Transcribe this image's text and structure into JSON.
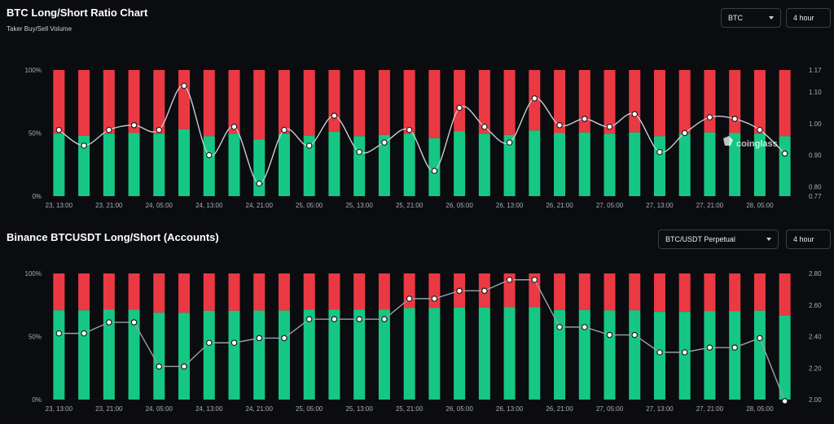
{
  "chart_data": [
    {
      "type": "bar",
      "title": "BTC Long/Short Ratio Chart",
      "subtitle": "Taker Buy/Sell Volume",
      "asset_select": "BTC",
      "interval_select": "4 hour",
      "watermark": "coinglass",
      "x_labels": [
        "23, 13:00",
        "23, 21:00",
        "24, 05:00",
        "24, 13:00",
        "24, 21:00",
        "25, 05:00",
        "25, 13:00",
        "25, 21:00",
        "26, 05:00",
        "26, 13:00",
        "26, 21:00",
        "27, 05:00",
        "27, 13:00",
        "27, 21:00",
        "28, 05:00"
      ],
      "y_left_ticks": [
        "100%",
        "50%",
        "0%"
      ],
      "y_right_ticks": [
        "1.17",
        "1.10",
        "1.00",
        "0.90",
        "0.80",
        "0.77"
      ],
      "y_right_values": [
        1.17,
        1.1,
        1.0,
        0.9,
        0.8,
        0.77
      ],
      "y_right_range": [
        0.77,
        1.17
      ],
      "long_pct": [
        49.5,
        48.0,
        49.5,
        50.0,
        49.5,
        53.0,
        47.5,
        49.5,
        45.0,
        49.5,
        48.0,
        51.0,
        47.5,
        48.5,
        49.5,
        46.0,
        51.5,
        49.5,
        48.5,
        52.0,
        50.0,
        50.5,
        49.5,
        50.5,
        47.5,
        49.5,
        50.5,
        50.0,
        49.5,
        47.5
      ],
      "ratio": [
        0.98,
        0.93,
        0.98,
        0.995,
        0.98,
        1.12,
        0.9,
        0.99,
        0.81,
        0.98,
        0.93,
        1.025,
        0.91,
        0.94,
        0.98,
        0.85,
        1.05,
        0.99,
        0.94,
        1.08,
        0.995,
        1.015,
        0.99,
        1.03,
        0.91,
        0.97,
        1.02,
        1.015,
        0.98,
        0.905
      ],
      "colors": {
        "long": "#16c784",
        "short": "#ea3943",
        "line": "#c9ccd1"
      }
    },
    {
      "type": "bar",
      "title": "Binance BTCUSDT Long/Short (Accounts)",
      "pair_select": "BTC/USDT Perpetual",
      "interval_select": "4 hour",
      "x_labels": [
        "23, 13:00",
        "23, 21:00",
        "24, 05:00",
        "24, 13:00",
        "24, 21:00",
        "25, 05:00",
        "25, 13:00",
        "25, 21:00",
        "26, 05:00",
        "26, 13:00",
        "26, 21:00",
        "27, 05:00",
        "27, 13:00",
        "27, 21:00",
        "28, 05:00"
      ],
      "y_left_ticks": [
        "100%",
        "50%",
        "0%"
      ],
      "y_right_ticks": [
        "2.80",
        "2.60",
        "2.40",
        "2.20",
        "2.00"
      ],
      "y_right_values": [
        2.8,
        2.6,
        2.4,
        2.2,
        2.0
      ],
      "y_right_range": [
        2.0,
        2.8
      ],
      "long_pct": [
        70.8,
        70.8,
        71.3,
        71.3,
        68.9,
        68.9,
        70.4,
        70.4,
        70.6,
        70.6,
        71.5,
        71.5,
        71.5,
        71.5,
        72.6,
        72.6,
        73.0,
        73.0,
        73.4,
        73.4,
        71.1,
        71.1,
        70.7,
        70.7,
        69.6,
        69.6,
        70.0,
        70.0,
        70.5,
        66.7
      ],
      "ratio": [
        2.42,
        2.42,
        2.49,
        2.49,
        2.21,
        2.21,
        2.36,
        2.36,
        2.39,
        2.39,
        2.51,
        2.51,
        2.51,
        2.51,
        2.64,
        2.64,
        2.69,
        2.69,
        2.76,
        2.76,
        2.46,
        2.46,
        2.41,
        2.41,
        2.3,
        2.3,
        2.33,
        2.33,
        2.39,
        1.99
      ],
      "colors": {
        "long": "#16c784",
        "short": "#ea3943",
        "line": "#9aa0a8"
      }
    }
  ]
}
